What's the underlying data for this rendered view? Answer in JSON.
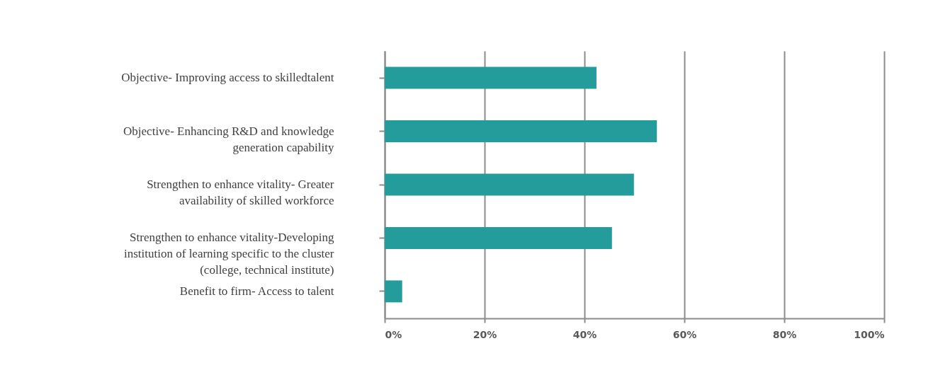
{
  "chart_data": {
    "type": "bar",
    "orientation": "horizontal",
    "categories": [
      "Objective- Improving access to skilledtalent",
      "Objective- Enhancing R&D and knowledge\ngeneration capability",
      "Strengthen to enhance vitality- Greater\navailability of skilled workforce",
      "Strengthen to enhance vitality-Developing\ninstitution of learning specific to the cluster\n(college, technical institute)",
      "Benefit to firm- Access to talent"
    ],
    "values": [
      42.4,
      54.5,
      49.9,
      45.5,
      3.5
    ],
    "color": "#249c9c",
    "xlim": [
      0,
      100
    ],
    "xticks": [
      {
        "value": 0,
        "label": "0%"
      },
      {
        "value": 20,
        "label": "20%"
      },
      {
        "value": 40,
        "label": "40%"
      },
      {
        "value": 60,
        "label": "60%"
      },
      {
        "value": 80,
        "label": "80%"
      },
      {
        "value": 100,
        "label": "100%"
      }
    ],
    "grid": "x"
  }
}
